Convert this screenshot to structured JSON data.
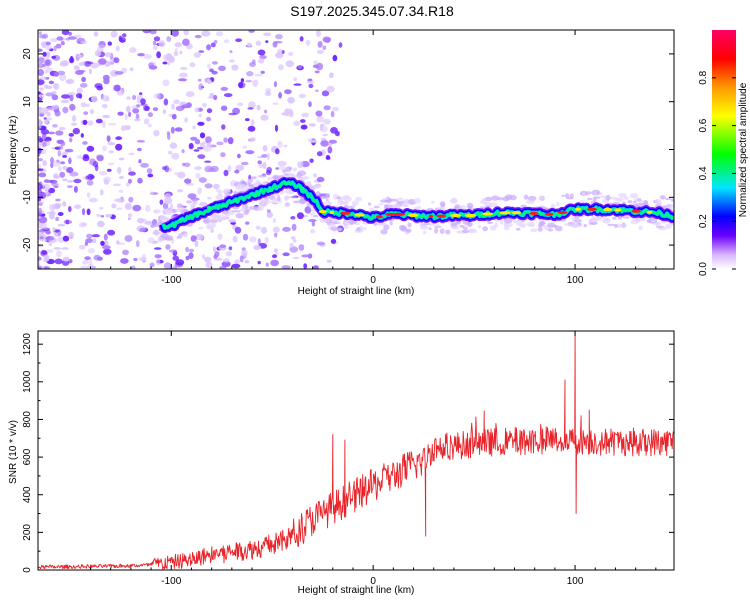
{
  "page_title": "S197.2025.345.07.34.R18",
  "chart_data": [
    {
      "type": "heatmap",
      "title": "S197.2025.345.07.34.R18",
      "xlabel": "Height of straight line (km)",
      "ylabel": "Frequency (Hz)",
      "xlim": [
        -166,
        149
      ],
      "ylim": [
        -25,
        25
      ],
      "x_ticks": [
        -100,
        0,
        100
      ],
      "y_ticks": [
        -20,
        -10,
        0,
        10,
        20
      ],
      "ridge": {
        "x": [
          -100,
          -90,
          -80,
          -70,
          -60,
          -50,
          -43,
          -38,
          -33,
          -28,
          -25,
          -20,
          -10,
          0,
          10,
          20,
          30,
          40,
          50,
          60,
          70,
          80,
          90,
          100,
          110,
          120,
          130,
          140,
          149
        ],
        "y": [
          -16,
          -14,
          -12.5,
          -11,
          -9.5,
          -8,
          -7,
          -7.5,
          -9,
          -11,
          -13,
          -13.2,
          -13.4,
          -14.3,
          -13.5,
          -13.8,
          -14,
          -13.8,
          -13.8,
          -13.3,
          -13.2,
          -13.4,
          -13.6,
          -12.5,
          -12.5,
          -12.6,
          -12.9,
          -13.2,
          -14
        ]
      },
      "colorbar": {
        "label": "Normalized spectral amplitude",
        "range": [
          0,
          1
        ],
        "ticks": [
          0.0,
          0.2,
          0.4,
          0.6,
          0.8
        ],
        "tick_labels": [
          "0.0",
          "0.2",
          "0.4",
          "0.6",
          "0.8"
        ],
        "colors": [
          "#ffffff",
          "#6a00ff",
          "#0000ff",
          "#00e6ff",
          "#00ff00",
          "#ffff00",
          "#ff9900",
          "#ff0000",
          "#ff0066"
        ]
      }
    },
    {
      "type": "line",
      "xlabel": "Height of straight line (km)",
      "ylabel": "SNR (10 * v/v)",
      "xlim": [
        -166,
        149
      ],
      "ylim": [
        0,
        1270
      ],
      "x_ticks": [
        -100,
        0,
        100
      ],
      "y_ticks": [
        0,
        200,
        400,
        600,
        800,
        1000,
        1200
      ],
      "series": [
        {
          "name": "SNR",
          "color": "#e8242a",
          "trend": {
            "x": [
              -166,
              -120,
              -110,
              -90,
              -80,
              -60,
              -45,
              -38,
              -30,
              -20,
              -10,
              0,
              10,
              20,
              25,
              30,
              40,
              60,
              80,
              100,
              120,
              140,
              149
            ],
            "y": [
              15,
              22,
              28,
              55,
              85,
              110,
              150,
              200,
              270,
              330,
              390,
              450,
              500,
              560,
              580,
              650,
              660,
              680,
              690,
              690,
              680,
              680,
              680
            ]
          },
          "spikes": [
            {
              "x": -20,
              "y": 720
            },
            {
              "x": -14,
              "y": 690
            },
            {
              "x": 26,
              "y": 180
            },
            {
              "x": 55,
              "y": 845
            },
            {
              "x": 95,
              "y": 1010
            },
            {
              "x": 100,
              "y": 1270
            },
            {
              "x": 100.5,
              "y": 300
            },
            {
              "x": 103,
              "y": 820
            },
            {
              "x": 107,
              "y": 850
            }
          ]
        }
      ]
    }
  ]
}
